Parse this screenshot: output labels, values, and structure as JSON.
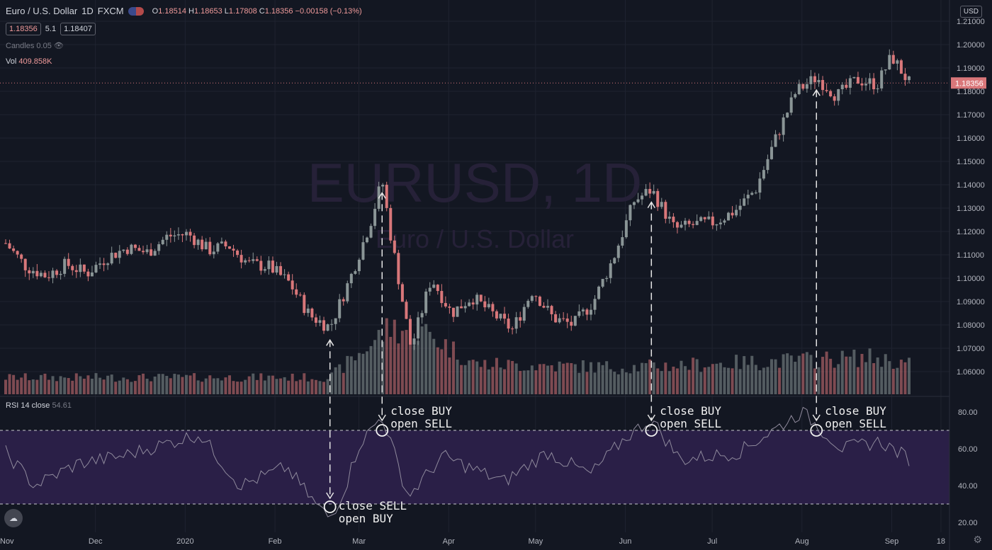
{
  "header": {
    "symbol_name": "Euro / U.S. Dollar",
    "interval": "1D",
    "exchange": "FXCM",
    "open_label": "O",
    "open": "1.18514",
    "high_label": "H",
    "high": "1.18653",
    "low_label": "L",
    "low": "1.17808",
    "close_label": "C",
    "close": "1.18356",
    "change": "−0.00158 (−0.13%)",
    "sell_price": "1.18356",
    "spread": "5.1",
    "buy_price": "1.18407"
  },
  "indicators": {
    "candles_label": "Candles 0.05",
    "vol_label": "Vol",
    "vol_value": "409.858K",
    "rsi_label": "RSI 14 close",
    "rsi_value": "54.61"
  },
  "currency": "USD",
  "icons": {
    "flag": "eu-us-flag-icon",
    "eye": "hidden-eye-icon",
    "logo": "tradingview-logo-icon",
    "settings": "gear-icon"
  },
  "colors": {
    "background": "#131722",
    "bull": "#8a9596",
    "bear": "#d9777a",
    "rsi_band": "#2a1f47",
    "watermark": "#262138"
  },
  "chart_data": [
    {
      "type": "candlestick",
      "title": "EURUSD, 1D",
      "subtitle": "Euro / U.S. Dollar",
      "x_labels": [
        "Nov",
        "Dec",
        "2020",
        "Feb",
        "Mar",
        "Apr",
        "May",
        "Jun",
        "Jul",
        "Aug",
        "Sep",
        "18"
      ],
      "y_ticks": [
        "1.21000",
        "1.20000",
        "1.19000",
        "1.18000",
        "1.17000",
        "1.16000",
        "1.15000",
        "1.14000",
        "1.13000",
        "1.12000",
        "1.11000",
        "1.10000",
        "1.09000",
        "1.08000",
        "1.07000",
        "1.06000"
      ],
      "ylim": [
        1.055,
        1.212
      ],
      "last_price": "1.18356",
      "close_path": [
        {
          "date": "2019-10-31",
          "value": 1.115
        },
        {
          "date": "2019-11-07",
          "value": 1.105
        },
        {
          "date": "2019-11-14",
          "value": 1.101
        },
        {
          "date": "2019-11-21",
          "value": 1.106
        },
        {
          "date": "2019-11-28",
          "value": 1.102
        },
        {
          "date": "2019-12-05",
          "value": 1.109
        },
        {
          "date": "2019-12-12",
          "value": 1.113
        },
        {
          "date": "2019-12-19",
          "value": 1.111
        },
        {
          "date": "2019-12-26",
          "value": 1.118
        },
        {
          "date": "2020-01-02",
          "value": 1.119
        },
        {
          "date": "2020-01-09",
          "value": 1.112
        },
        {
          "date": "2020-01-16",
          "value": 1.114
        },
        {
          "date": "2020-01-23",
          "value": 1.106
        },
        {
          "date": "2020-01-30",
          "value": 1.105
        },
        {
          "date": "2020-02-06",
          "value": 1.098
        },
        {
          "date": "2020-02-13",
          "value": 1.084
        },
        {
          "date": "2020-02-20",
          "value": 1.079
        },
        {
          "date": "2020-02-27",
          "value": 1.1
        },
        {
          "date": "2020-03-05",
          "value": 1.124
        },
        {
          "date": "2020-03-09",
          "value": 1.142
        },
        {
          "date": "2020-03-12",
          "value": 1.118
        },
        {
          "date": "2020-03-19",
          "value": 1.07
        },
        {
          "date": "2020-03-26",
          "value": 1.1
        },
        {
          "date": "2020-04-02",
          "value": 1.085
        },
        {
          "date": "2020-04-09",
          "value": 1.092
        },
        {
          "date": "2020-04-16",
          "value": 1.085
        },
        {
          "date": "2020-04-23",
          "value": 1.078
        },
        {
          "date": "2020-04-30",
          "value": 1.095
        },
        {
          "date": "2020-05-07",
          "value": 1.083
        },
        {
          "date": "2020-05-14",
          "value": 1.08
        },
        {
          "date": "2020-05-21",
          "value": 1.09
        },
        {
          "date": "2020-05-28",
          "value": 1.109
        },
        {
          "date": "2020-06-04",
          "value": 1.133
        },
        {
          "date": "2020-06-10",
          "value": 1.138
        },
        {
          "date": "2020-06-18",
          "value": 1.121
        },
        {
          "date": "2020-06-25",
          "value": 1.123
        },
        {
          "date": "2020-07-02",
          "value": 1.124
        },
        {
          "date": "2020-07-09",
          "value": 1.129
        },
        {
          "date": "2020-07-16",
          "value": 1.138
        },
        {
          "date": "2020-07-23",
          "value": 1.16
        },
        {
          "date": "2020-07-30",
          "value": 1.18
        },
        {
          "date": "2020-08-06",
          "value": 1.186
        },
        {
          "date": "2020-08-13",
          "value": 1.178
        },
        {
          "date": "2020-08-20",
          "value": 1.185
        },
        {
          "date": "2020-08-27",
          "value": 1.183
        },
        {
          "date": "2020-09-01",
          "value": 1.195
        },
        {
          "date": "2020-09-07",
          "value": 1.1836
        }
      ]
    },
    {
      "type": "bar",
      "title": "Vol",
      "value": "409.858K",
      "volume_level": [
        {
          "date": "2019-10-31",
          "value": 0.25
        },
        {
          "date": "2020-02-20",
          "value": 0.25
        },
        {
          "date": "2020-03-01",
          "value": 0.6
        },
        {
          "date": "2020-03-12",
          "value": 1.0
        },
        {
          "date": "2020-03-25",
          "value": 0.9
        },
        {
          "date": "2020-04-10",
          "value": 0.45
        },
        {
          "date": "2020-06-01",
          "value": 0.4
        },
        {
          "date": "2020-08-25",
          "value": 0.55
        },
        {
          "date": "2020-09-07",
          "value": 0.45
        }
      ]
    },
    {
      "type": "line",
      "title": "RSI 14 close",
      "value": "54.61",
      "y_ticks": [
        "80.00",
        "60.00",
        "40.00",
        "20.00"
      ],
      "ylim": [
        16,
        88
      ],
      "bands": [
        30,
        70
      ],
      "rsi_path": [
        {
          "date": "2019-10-31",
          "value": 58
        },
        {
          "date": "2019-11-10",
          "value": 40
        },
        {
          "date": "2019-11-25",
          "value": 52
        },
        {
          "date": "2019-12-10",
          "value": 56
        },
        {
          "date": "2019-12-28",
          "value": 64
        },
        {
          "date": "2020-01-06",
          "value": 68
        },
        {
          "date": "2020-01-20",
          "value": 40
        },
        {
          "date": "2020-02-05",
          "value": 50
        },
        {
          "date": "2020-02-15",
          "value": 30
        },
        {
          "date": "2020-02-20",
          "value": 22
        },
        {
          "date": "2020-02-25",
          "value": 38
        },
        {
          "date": "2020-03-01",
          "value": 62
        },
        {
          "date": "2020-03-09",
          "value": 78
        },
        {
          "date": "2020-03-18",
          "value": 34
        },
        {
          "date": "2020-03-30",
          "value": 56
        },
        {
          "date": "2020-04-20",
          "value": 42
        },
        {
          "date": "2020-05-05",
          "value": 58
        },
        {
          "date": "2020-05-20",
          "value": 46
        },
        {
          "date": "2020-06-01",
          "value": 66
        },
        {
          "date": "2020-06-10",
          "value": 76
        },
        {
          "date": "2020-06-20",
          "value": 54
        },
        {
          "date": "2020-07-10",
          "value": 58
        },
        {
          "date": "2020-07-28",
          "value": 76
        },
        {
          "date": "2020-08-01",
          "value": 80
        },
        {
          "date": "2020-08-15",
          "value": 60
        },
        {
          "date": "2020-08-28",
          "value": 64
        },
        {
          "date": "2020-09-07",
          "value": 54.61
        }
      ]
    }
  ],
  "annotations": [
    {
      "date": "2020-02-20",
      "rsi": 30,
      "line1": "close SELL",
      "line2": "open BUY"
    },
    {
      "date": "2020-03-09",
      "rsi": 70,
      "line1": "close BUY",
      "line2": "open SELL"
    },
    {
      "date": "2020-06-10",
      "rsi": 70,
      "line1": "close BUY",
      "line2": "open SELL"
    },
    {
      "date": "2020-08-06",
      "rsi": 70,
      "line1": "close BUY",
      "line2": "open SELL"
    }
  ]
}
